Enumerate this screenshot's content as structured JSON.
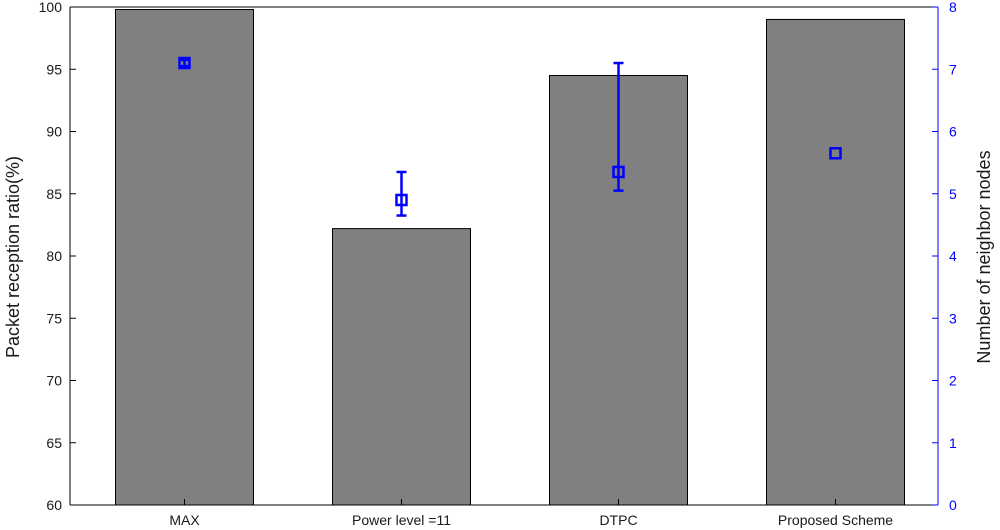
{
  "chart_data": {
    "type": "bar",
    "categories": [
      "MAX",
      "Power level =11",
      "DTPC",
      "Proposed Scheme"
    ],
    "series": [
      {
        "axis": "left",
        "values": [
          99.8,
          82.2,
          94.5,
          99.0
        ]
      },
      {
        "axis": "right",
        "mark": "square-with-error-bar",
        "values": [
          7.1,
          4.9,
          5.35,
          5.65
        ],
        "error_low": [
          7.05,
          4.65,
          5.05,
          6.25
        ],
        "error_high": [
          7.15,
          5.35,
          7.1,
          6.25
        ]
      }
    ],
    "ylabel": "Packet reception ratio(%)",
    "y2label": "Number of neighbor nodes",
    "ylim": [
      60,
      100
    ],
    "y2lim": [
      0,
      8
    ],
    "yticks": [
      60,
      65,
      70,
      75,
      80,
      85,
      90,
      95,
      100
    ],
    "y2ticks": [
      0,
      1,
      2,
      3,
      4,
      5,
      6,
      7,
      8
    ],
    "grid": false,
    "colors": {
      "bar_fill": "#808080",
      "bar_stroke": "#000000",
      "marker": "#0000ff",
      "right_axis": "#0000ff",
      "left_axis": "#000000"
    }
  }
}
